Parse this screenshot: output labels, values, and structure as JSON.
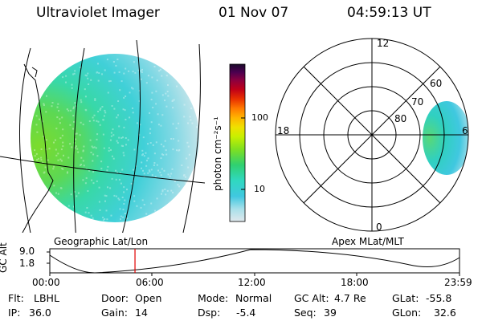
{
  "header": {
    "instrument": "Ultraviolet Imager",
    "date": "01 Nov 07",
    "time": "04:59:13 UT"
  },
  "left_panel": {
    "caption": "Geographic Lat/Lon"
  },
  "right_panel": {
    "caption": "Apex MLat/MLT",
    "mlt_labels": [
      "12",
      "18",
      "6",
      "0"
    ],
    "lat_labels": [
      "60",
      "70",
      "80"
    ]
  },
  "colorbar": {
    "unit_label": "photon cm⁻²s⁻¹",
    "ticks": [
      "100",
      "10"
    ],
    "colors": [
      "#1a0a2a",
      "#4a0050",
      "#8a0040",
      "#c00018",
      "#e83000",
      "#ff7800",
      "#ffb400",
      "#f0e000",
      "#c8f000",
      "#80e020",
      "#30d070",
      "#30d8c0",
      "#40c8e0",
      "#a8e0ea",
      "#e0e8ec"
    ]
  },
  "altitude_plot": {
    "ylabel": "GC Alt",
    "yticks": [
      "9.0",
      "1.8"
    ],
    "xticks": [
      "00:00",
      "06:00",
      "12:00",
      "18:00",
      "23:59"
    ],
    "marker_time_hours": 4.99,
    "marker_color": "#e00000"
  },
  "info": {
    "filter_label": "Flt:",
    "filter_value": "LBHL",
    "ip_label": "IP:",
    "ip_value": "36.0",
    "door_label": "Door:",
    "door_value": "Open",
    "gain_label": "Gain:",
    "gain_value": "14",
    "mode_label": "Mode:",
    "mode_value": "Normal",
    "dsp_label": "Dsp:",
    "dsp_value": "-5.4",
    "gcalt_label": "GC Alt:",
    "gcalt_value": "4.7 Re",
    "seq_label": "Seq:",
    "seq_value": "39",
    "glat_label": "GLat:",
    "glat_value": "-55.8",
    "glon_label": "GLon:",
    "glon_value": "32.6"
  }
}
